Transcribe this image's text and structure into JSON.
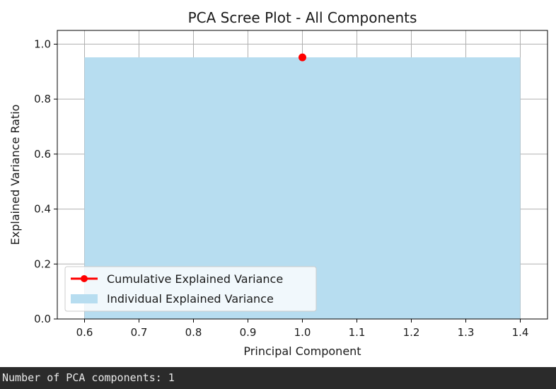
{
  "chart_data": {
    "type": "bar",
    "title": "PCA Scree Plot - All Components",
    "xlabel": "Principal Component",
    "ylabel": "Explained Variance Ratio",
    "xlim": [
      0.55,
      1.45
    ],
    "ylim": [
      0.0,
      1.05
    ],
    "xticks": [
      "0.6",
      "0.7",
      "0.8",
      "0.9",
      "1.0",
      "1.1",
      "1.2",
      "1.3",
      "1.4"
    ],
    "yticks": [
      "0.0",
      "0.2",
      "0.4",
      "0.6",
      "0.8",
      "1.0"
    ],
    "grid": true,
    "legend_position": "lower-left",
    "series": [
      {
        "name": "Cumulative Explained Variance",
        "kind": "line-marker",
        "color": "#ff0000",
        "x": [
          1.0
        ],
        "y": [
          0.952
        ]
      },
      {
        "name": "Individual Explained Variance",
        "kind": "bar",
        "color": "#b7ddf0",
        "x": [
          1.0
        ],
        "width": 0.8,
        "y": [
          0.952
        ]
      }
    ]
  },
  "console": {
    "output": "Number of PCA components: 1"
  }
}
